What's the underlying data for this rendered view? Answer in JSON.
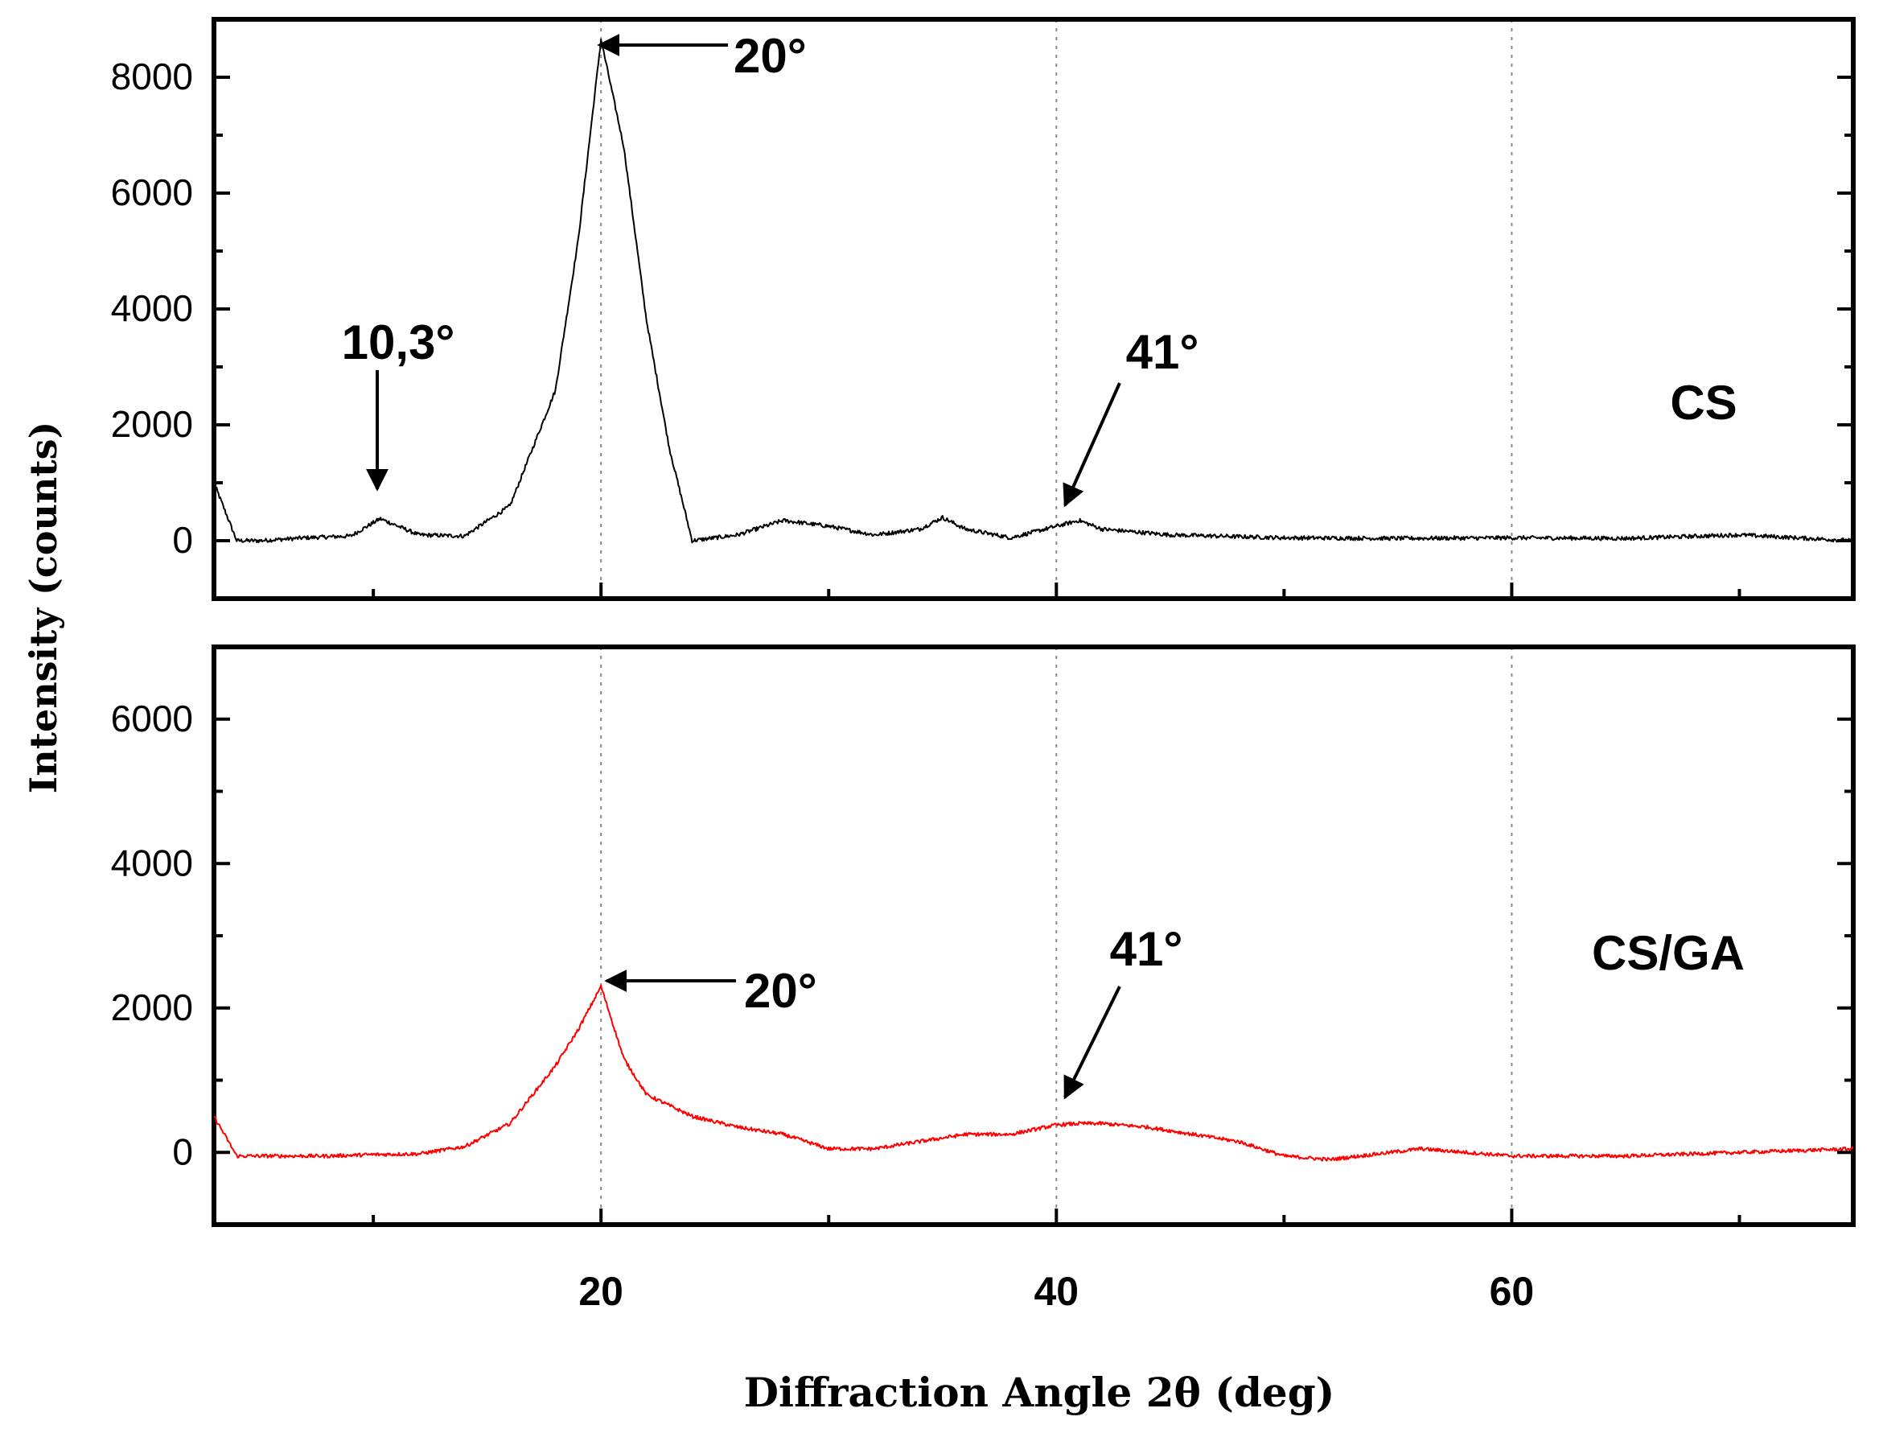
{
  "chart_data": [
    {
      "type": "line",
      "panel": "top",
      "label": "CS",
      "color": "#000000",
      "x": [
        3,
        4,
        5,
        7,
        9,
        10.3,
        12,
        14,
        16,
        18,
        19,
        20,
        21,
        22,
        23,
        24,
        26,
        28,
        30,
        32,
        34,
        35,
        36,
        38,
        40,
        41,
        42,
        45,
        50,
        55,
        60,
        65,
        70,
        75
      ],
      "y": [
        1000,
        0,
        0,
        50,
        80,
        380,
        100,
        80,
        600,
        2600,
        5200,
        8650,
        6800,
        3800,
        1600,
        0,
        100,
        350,
        250,
        100,
        200,
        400,
        200,
        50,
        250,
        350,
        200,
        100,
        50,
        40,
        50,
        40,
        100,
        0
      ],
      "xlim": [
        3,
        75
      ],
      "ylim": [
        -1000,
        9000
      ],
      "yticks": [
        "0",
        "2000",
        "4000",
        "6000",
        "8000"
      ],
      "annotations": [
        "20°",
        "10,3°",
        "41°"
      ]
    },
    {
      "type": "line",
      "panel": "bottom",
      "label": "CS/GA",
      "color": "#ff0000",
      "x": [
        3,
        4,
        6,
        8,
        10,
        12,
        14,
        16,
        18,
        19,
        20,
        21,
        22,
        24,
        26,
        28,
        30,
        32,
        34,
        36,
        38,
        40,
        41,
        42,
        44,
        46,
        48,
        50,
        52,
        56,
        60,
        65,
        70,
        75
      ],
      "y": [
        500,
        -50,
        -50,
        -50,
        -30,
        -20,
        80,
        400,
        1200,
        1700,
        2300,
        1300,
        800,
        500,
        350,
        250,
        50,
        50,
        150,
        250,
        250,
        380,
        400,
        400,
        350,
        250,
        150,
        -50,
        -100,
        50,
        -50,
        -50,
        0,
        50
      ],
      "xlim": [
        3,
        75
      ],
      "ylim": [
        -1000,
        7000
      ],
      "yticks": [
        "0",
        "2000",
        "4000",
        "6000"
      ],
      "annotations": [
        "20°",
        "41°"
      ]
    }
  ],
  "axes": {
    "xlabel": "Diffraction Angle 2θ (deg)",
    "ylabel": "Intensity (counts)",
    "xticks": [
      "20",
      "40",
      "60"
    ]
  }
}
